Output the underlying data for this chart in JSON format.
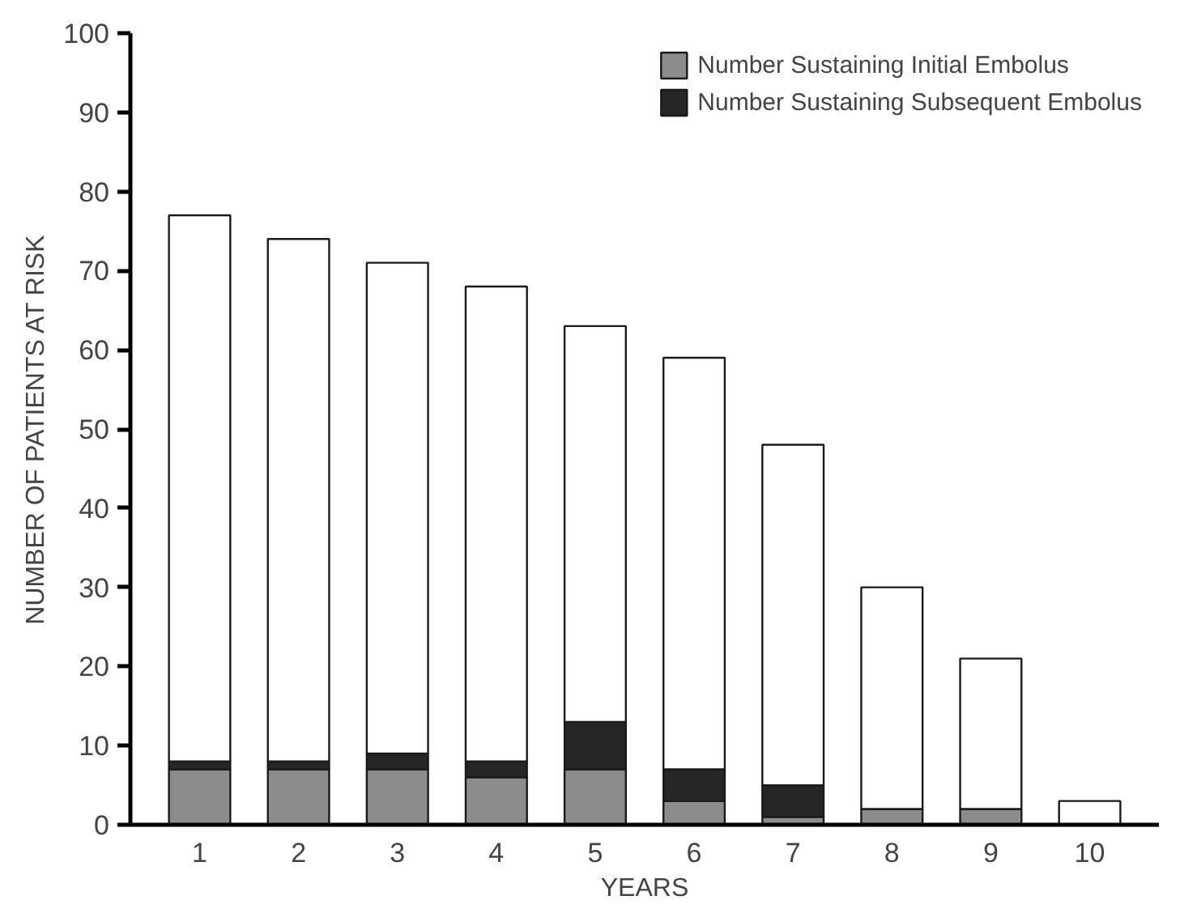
{
  "chart_data": {
    "type": "bar",
    "stacked": true,
    "xlabel": "YEARS",
    "ylabel": "NUMBER OF PATIENTS AT RISK",
    "categories": [
      "1",
      "2",
      "3",
      "4",
      "5",
      "6",
      "7",
      "8",
      "9",
      "10"
    ],
    "series": [
      {
        "name": "Number Sustaining Initial Embolus",
        "color": "#8c8c8c",
        "values": [
          7,
          7,
          7,
          6,
          7,
          3,
          1,
          2,
          2,
          0
        ]
      },
      {
        "name": "Number Sustaining Subsequent Embolus",
        "color": "#262626",
        "values": [
          1,
          1,
          2,
          2,
          6,
          4,
          4,
          0,
          0,
          0
        ]
      },
      {
        "color": "#ffffff",
        "values": [
          69,
          66,
          62,
          60,
          50,
          52,
          43,
          28,
          19,
          3
        ]
      }
    ],
    "ylim": [
      0,
      100
    ],
    "yticks": [
      0,
      10,
      20,
      30,
      40,
      50,
      60,
      70,
      80,
      90,
      100
    ],
    "grid": false,
    "legend": "top right"
  }
}
